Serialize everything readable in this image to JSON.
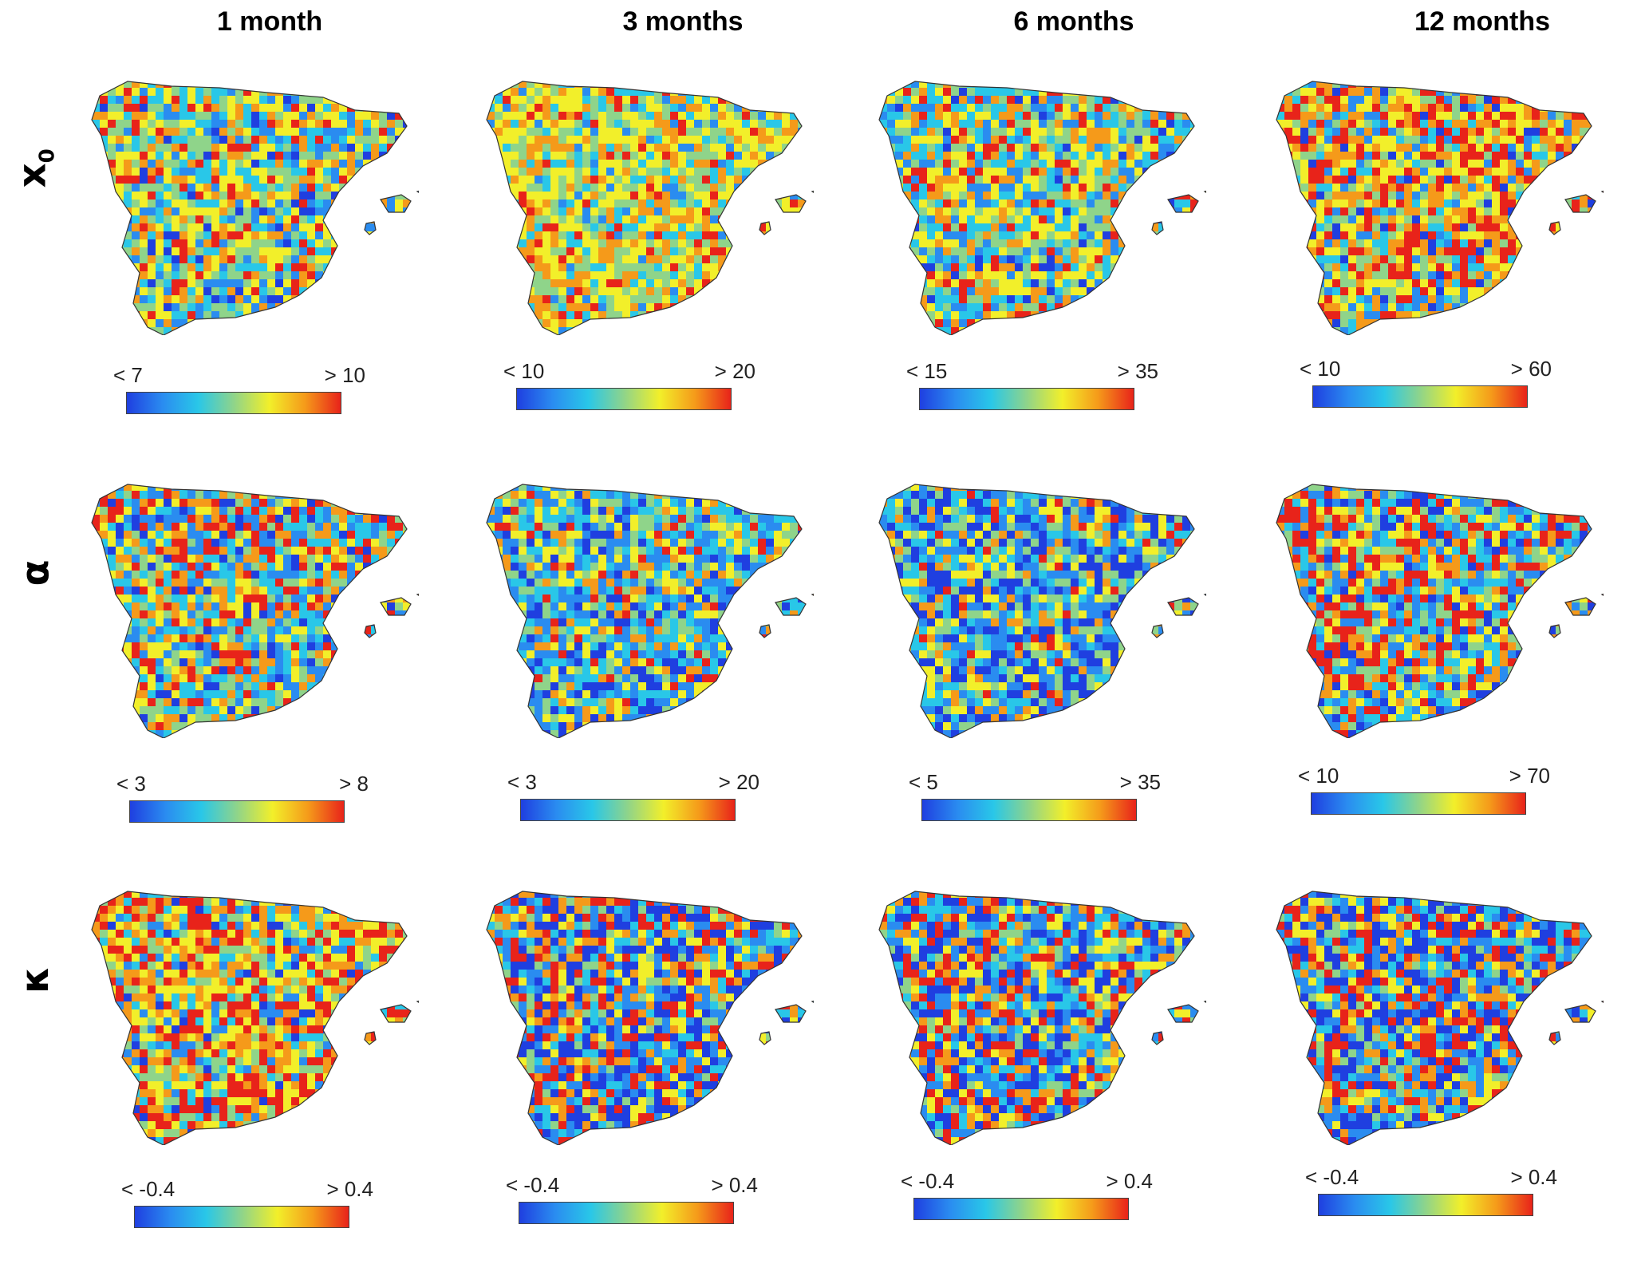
{
  "columns": [
    "1 month",
    "3 months",
    "6 months",
    "12 months"
  ],
  "rows": [
    {
      "symbol": "x",
      "subscript": "0"
    },
    {
      "symbol": "α",
      "subscript": ""
    },
    {
      "symbol": "κ",
      "subscript": ""
    }
  ],
  "legends": [
    [
      {
        "lo": "< 7",
        "hi": "> 10"
      },
      {
        "lo": "< 10",
        "hi": "> 20"
      },
      {
        "lo": "< 15",
        "hi": "> 35"
      },
      {
        "lo": "< 10",
        "hi": "> 60"
      }
    ],
    [
      {
        "lo": "< 3",
        "hi": "> 8"
      },
      {
        "lo": "< 3",
        "hi": "> 20"
      },
      {
        "lo": "< 5",
        "hi": "> 35"
      },
      {
        "lo": "< 10",
        "hi": "> 70"
      }
    ],
    [
      {
        "lo": "< -0.4",
        "hi": "> 0.4"
      },
      {
        "lo": "< -0.4",
        "hi": "> 0.4"
      },
      {
        "lo": "< -0.4",
        "hi": "> 0.4"
      },
      {
        "lo": "< -0.4",
        "hi": "> 0.4"
      }
    ]
  ],
  "colormap": [
    "#1f3fe0",
    "#2a8cf0",
    "#29c7e8",
    "#8fd48a",
    "#f2ef2a",
    "#f59a1a",
    "#e8231a"
  ],
  "map_tones": [
    [
      "yellow-cyan",
      "yellow",
      "yellow-cyan",
      "red-yellow"
    ],
    [
      "cyan-red",
      "blue-yellow",
      "blue",
      "red-blue"
    ],
    [
      "red-yellow",
      "blue-red",
      "blue-red",
      "blue-red"
    ]
  ]
}
